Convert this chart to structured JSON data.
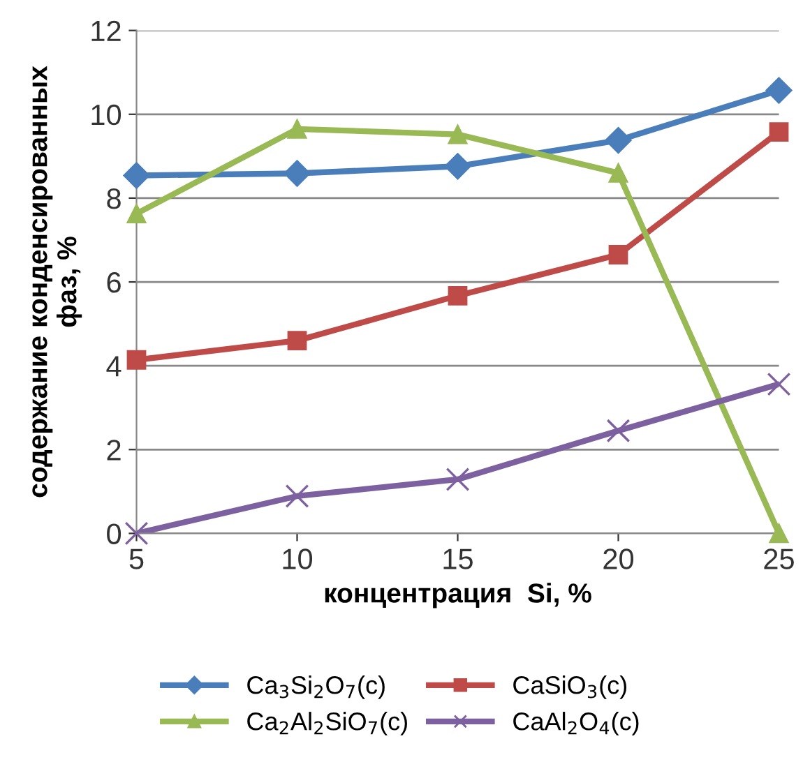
{
  "chart_data": {
    "type": "line",
    "xlabel": "концентрация  Si, %",
    "ylabel": "содержание конденсированных\nфаз, %",
    "x": [
      5,
      10,
      15,
      20,
      25
    ],
    "xlim": [
      5,
      25
    ],
    "xticks": [
      5,
      10,
      15,
      20,
      25
    ],
    "ylim": [
      0,
      12
    ],
    "yticks": [
      0,
      2,
      4,
      6,
      8,
      10,
      12
    ],
    "grid": "y",
    "legend": "bottom",
    "series": [
      {
        "name": "Ca$_{3}$Si$_{2}$O$_{7}$(c)",
        "color": "#4a7ebb",
        "marker": "diamond",
        "values": [
          8.54,
          8.59,
          8.76,
          9.38,
          10.57
        ]
      },
      {
        "name": "CaSiO$_{3}$(c)",
        "color": "#be4b48",
        "marker": "square",
        "values": [
          4.14,
          4.6,
          5.67,
          6.65,
          9.58
        ]
      },
      {
        "name": "Ca$_{2}$Al$_{2}$SiO$_{7}$(c)",
        "color": "#98b954",
        "marker": "triangle",
        "values": [
          7.63,
          9.65,
          9.52,
          8.6,
          0
        ]
      },
      {
        "name": "CaAl$_{2}$O$_{4}$(c)",
        "color": "#7d60a0",
        "marker": "cross",
        "values": [
          0,
          0.89,
          1.29,
          2.45,
          3.56
        ]
      }
    ]
  }
}
